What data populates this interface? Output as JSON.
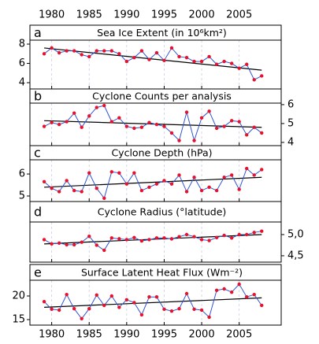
{
  "chart_data": [
    {
      "type": "line",
      "label": "a",
      "title": "Sea Ice Extent (in 10⁶km²)",
      "x": [
        1979,
        1980,
        1981,
        1982,
        1983,
        1984,
        1985,
        1986,
        1987,
        1988,
        1989,
        1990,
        1991,
        1992,
        1993,
        1994,
        1995,
        1996,
        1997,
        1998,
        1999,
        2000,
        2001,
        2002,
        2003,
        2004,
        2005,
        2006,
        2007,
        2008
      ],
      "series": [
        {
          "color": "#2f55d4",
          "marker_color": "#e8112d",
          "values": [
            7.0,
            7.6,
            7.1,
            7.3,
            7.3,
            6.9,
            6.7,
            7.3,
            7.3,
            7.3,
            7.0,
            6.2,
            6.6,
            7.3,
            6.4,
            7.1,
            6.3,
            7.6,
            6.7,
            6.6,
            6.2,
            6.2,
            6.7,
            5.9,
            6.2,
            6.0,
            5.5,
            5.9,
            4.3,
            4.7
          ]
        }
      ],
      "trend": {
        "x": [
          1979,
          2008
        ],
        "values": [
          7.6,
          5.3
        ],
        "color": "#000000"
      },
      "xlim": [
        1977.1,
        2010.6
      ],
      "xticks": [
        1980,
        1985,
        1990,
        1995,
        2000,
        2005
      ],
      "xtick_labels": "top",
      "ylim": [
        3.35,
        9.96
      ],
      "yticks": [
        4,
        6,
        8
      ],
      "ytick_side": "left",
      "grid": "x-dashed"
    },
    {
      "type": "line",
      "label": "b",
      "title": "Cyclone Counts per analysis",
      "x": [
        1979,
        1980,
        1981,
        1982,
        1983,
        1984,
        1985,
        1986,
        1987,
        1988,
        1989,
        1990,
        1991,
        1992,
        1993,
        1994,
        1995,
        1996,
        1997,
        1998,
        1999,
        2000,
        2001,
        2002,
        2003,
        2004,
        2005,
        2006,
        2007,
        2008
      ],
      "series": [
        {
          "color": "#2f55d4",
          "marker_color": "#e8112d",
          "values": [
            4.85,
            5.05,
            4.95,
            5.1,
            5.55,
            4.8,
            5.4,
            5.85,
            5.95,
            5.1,
            5.3,
            4.85,
            4.75,
            4.8,
            5.05,
            4.95,
            4.85,
            4.5,
            4.1,
            5.6,
            4.1,
            5.3,
            5.65,
            4.75,
            4.85,
            5.15,
            5.1,
            4.4,
            4.8,
            4.5
          ]
        }
      ],
      "trend": {
        "x": [
          1979,
          2008
        ],
        "values": [
          5.15,
          4.8
        ],
        "color": "#000000"
      },
      "xlim": [
        1977.1,
        2010.6
      ],
      "xticks": [
        1980,
        1985,
        1990,
        1995,
        2000,
        2005
      ],
      "xtick_labels": "none",
      "ylim": [
        3.83,
        6.83
      ],
      "yticks": [
        4,
        5,
        6
      ],
      "ytick_side": "right",
      "grid": "x-dashed"
    },
    {
      "type": "line",
      "label": "c",
      "title": "Cyclone Depth (hPa)",
      "x": [
        1979,
        1980,
        1981,
        1982,
        1983,
        1984,
        1985,
        1986,
        1987,
        1988,
        1989,
        1990,
        1991,
        1992,
        1993,
        1994,
        1995,
        1996,
        1997,
        1998,
        1999,
        2000,
        2001,
        2002,
        2003,
        2004,
        2005,
        2006,
        2007,
        2008
      ],
      "series": [
        {
          "color": "#2f55d4",
          "marker_color": "#e8112d",
          "values": [
            5.65,
            5.35,
            5.2,
            5.7,
            5.25,
            5.2,
            6.05,
            5.35,
            4.9,
            6.1,
            6.05,
            5.55,
            6.05,
            5.25,
            5.4,
            5.55,
            5.7,
            5.55,
            5.95,
            5.2,
            5.85,
            5.25,
            5.4,
            5.25,
            5.85,
            5.95,
            5.3,
            6.25,
            5.95,
            6.2
          ]
        }
      ],
      "trend": {
        "x": [
          1979,
          2008
        ],
        "values": [
          5.4,
          5.85
        ],
        "color": "#000000"
      },
      "xlim": [
        1977.1,
        2010.6
      ],
      "xticks": [
        1980,
        1985,
        1990,
        1995,
        2000,
        2005
      ],
      "xtick_labels": "none",
      "ylim": [
        4.75,
        7.29
      ],
      "yticks": [
        5,
        6
      ],
      "ytick_side": "left",
      "grid": "x-dashed"
    },
    {
      "type": "line",
      "label": "d",
      "title": "Cyclone Radius (°latitude)",
      "x": [
        1979,
        1980,
        1981,
        1982,
        1983,
        1984,
        1985,
        1986,
        1987,
        1988,
        1989,
        1990,
        1991,
        1992,
        1993,
        1994,
        1995,
        1996,
        1997,
        1998,
        1999,
        2000,
        2001,
        2002,
        2003,
        2004,
        2005,
        2006,
        2007,
        2008
      ],
      "series": [
        {
          "color": "#2f55d4",
          "marker_color": "#e8112d",
          "values": [
            4.88,
            4.78,
            4.8,
            4.76,
            4.76,
            4.82,
            4.96,
            4.75,
            4.63,
            4.92,
            4.9,
            4.88,
            4.93,
            4.85,
            4.88,
            4.92,
            4.92,
            4.9,
            4.95,
            5.0,
            4.95,
            4.88,
            4.86,
            4.93,
            4.98,
            4.92,
            5.0,
            5.0,
            5.05,
            5.08
          ]
        }
      ],
      "trend": {
        "x": [
          1979,
          2008
        ],
        "values": [
          4.78,
          5.0
        ],
        "color": "#000000"
      },
      "xlim": [
        1977.1,
        2010.6
      ],
      "xticks": [
        1980,
        1985,
        1990,
        1995,
        2000,
        2005
      ],
      "xtick_labels": "none",
      "ylim": [
        4.35,
        5.78
      ],
      "yticks": [
        {
          "value": 4.5,
          "label": "4,5"
        },
        {
          "value": 5,
          "label": "5,0"
        }
      ],
      "ytick_side": "right",
      "grid": "x-dashed"
    },
    {
      "type": "line",
      "label": "e",
      "title": "Surface Latent Heat Flux (Wm⁻²)",
      "x": [
        1979,
        1980,
        1981,
        1982,
        1983,
        1984,
        1985,
        1986,
        1987,
        1988,
        1989,
        1990,
        1991,
        1992,
        1993,
        1994,
        1995,
        1996,
        1997,
        1998,
        1999,
        2000,
        2001,
        2002,
        2003,
        2004,
        2005,
        2006,
        2007,
        2008
      ],
      "series": [
        {
          "color": "#2f55d4",
          "marker_color": "#e8112d",
          "values": [
            18.8,
            17.2,
            17.0,
            20.3,
            17.3,
            15.2,
            17.3,
            20.2,
            18.0,
            20.0,
            17.6,
            19.2,
            18.6,
            16.0,
            19.8,
            19.8,
            17.2,
            16.8,
            17.3,
            20.5,
            17.2,
            17.0,
            15.5,
            21.2,
            21.5,
            20.8,
            22.5,
            19.8,
            20.3,
            18.0
          ]
        }
      ],
      "trend": {
        "x": [
          1979,
          2008
        ],
        "values": [
          17.6,
          19.6
        ],
        "color": "#000000"
      },
      "xlim": [
        1977.1,
        2010.6
      ],
      "xticks": [
        1980,
        1985,
        1990,
        1995,
        2000,
        2005
      ],
      "xtick_labels": "bottom",
      "ylim": [
        13.83,
        26.67
      ],
      "yticks": [
        15,
        20
      ],
      "ytick_side": "left",
      "grid": "x-dashed"
    }
  ]
}
